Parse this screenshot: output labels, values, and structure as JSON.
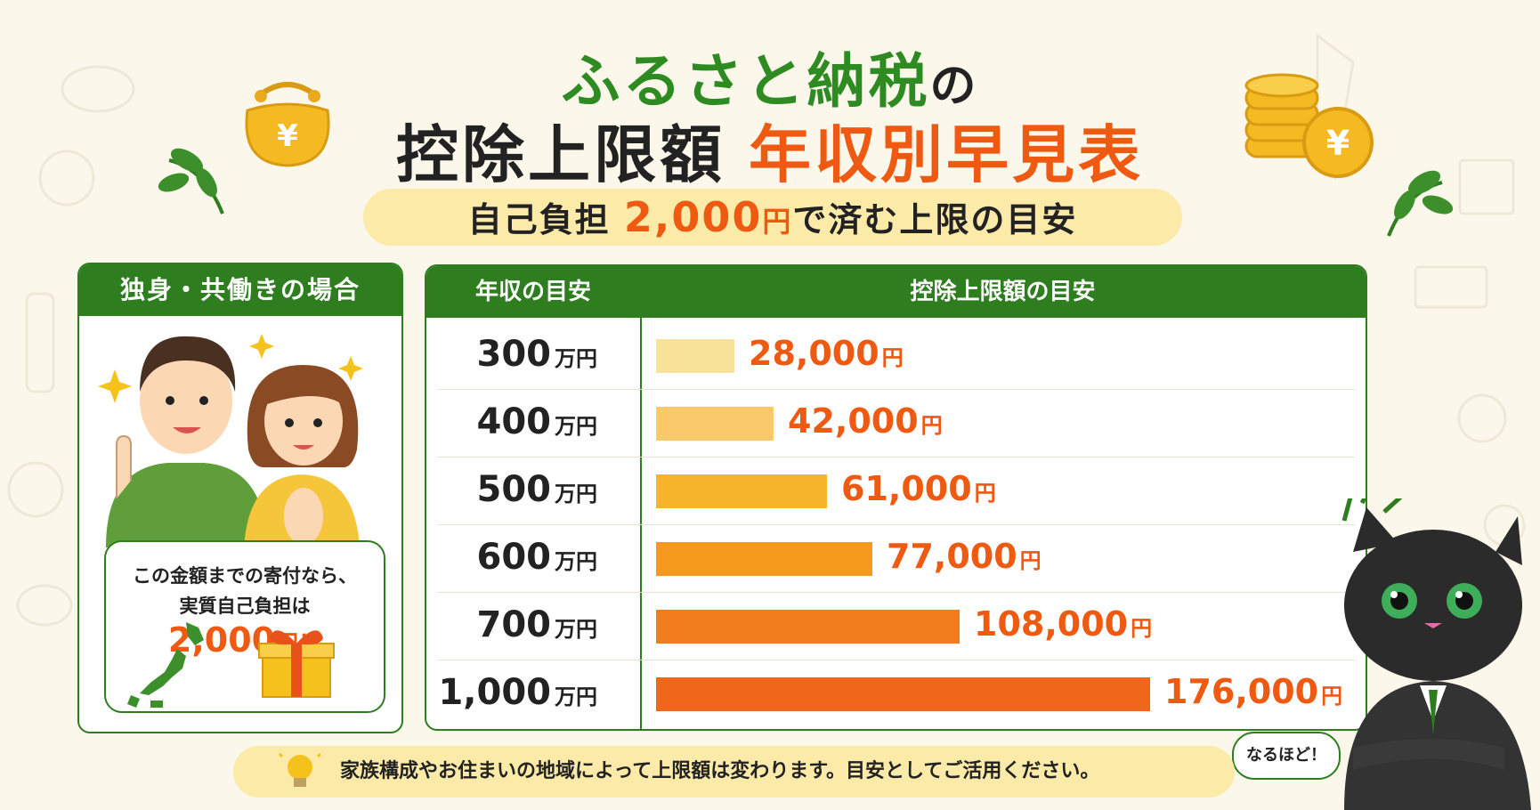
{
  "title": {
    "part1": "ふるさと納税",
    "part1_no": "の",
    "part2": "控除上限額",
    "part2_highlight": "年収別早見表"
  },
  "subtitle": {
    "before": "自己負担 ",
    "amount": "2,000",
    "yen": "円",
    "after": "で済む上限の目安"
  },
  "left_panel": {
    "header": "独身・共働きの場合",
    "bubble_line1": "この金額までの寄付なら、",
    "bubble_line2": "実質自己負担は",
    "bubble_amount": "2,000",
    "bubble_yen": "円！"
  },
  "chart_data": {
    "type": "bar",
    "orientation": "horizontal",
    "column_headers": [
      "年収の目安",
      "控除上限額の目安"
    ],
    "categories": [
      "300",
      "400",
      "500",
      "600",
      "700",
      "1,000"
    ],
    "category_unit": "万円",
    "values": [
      28000,
      42000,
      61000,
      77000,
      108000,
      176000
    ],
    "value_labels": [
      "28,000",
      "42,000",
      "61,000",
      "77,000",
      "108,000",
      "176,000"
    ],
    "value_unit": "円",
    "bar_colors": [
      "#f9e39b",
      "#f9c96a",
      "#f7b52c",
      "#f59a1c",
      "#f27d1c",
      "#f0661a"
    ]
  },
  "cat_speech": "なるほど！",
  "footer_note": "家族構成やお住まいの地域によって上限額は変わります。目安としてご活用ください。",
  "colors": {
    "green": "#2e7d1f",
    "orange": "#ef5a12",
    "cream": "#fbeaa8"
  }
}
